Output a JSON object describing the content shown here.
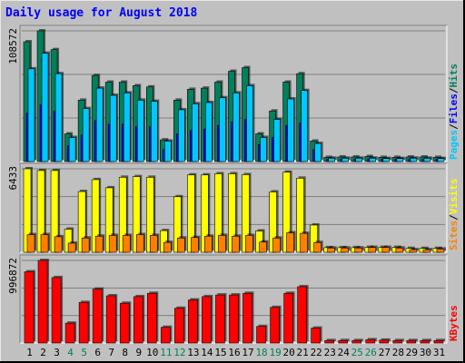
{
  "chart_data": {
    "type": "bar",
    "title": "Daily usage for August 2018",
    "categories": [
      "1",
      "2",
      "3",
      "4",
      "5",
      "6",
      "7",
      "8",
      "9",
      "10",
      "11",
      "12",
      "13",
      "14",
      "15",
      "16",
      "17",
      "18",
      "19",
      "20",
      "21",
      "22",
      "23",
      "24",
      "25",
      "26",
      "27",
      "28",
      "29",
      "30",
      "31"
    ],
    "weekend_days": [
      "4",
      "5",
      "11",
      "12",
      "18",
      "19",
      "25",
      "26"
    ],
    "panels": [
      {
        "id": "hits-files-pages",
        "axis_max_label": "108572",
        "ylim": [
          0,
          108572
        ],
        "legend": [
          {
            "label": "Pages",
            "color": "#00c8ff"
          },
          {
            "label": "/",
            "color": "#000000"
          },
          {
            "label": "Files",
            "color": "#0000ff"
          },
          {
            "label": "/",
            "color": "#000000"
          },
          {
            "label": "Hits",
            "color": "#00805c"
          }
        ],
        "series": [
          {
            "name": "Hits",
            "color": "#00805c",
            "values": [
              99500,
              108572,
              93000,
              23000,
              51000,
              71500,
              66000,
              66000,
              63000,
              62000,
              18000,
              51000,
              60000,
              61000,
              66000,
              75000,
              78000,
              23000,
              42000,
              66000,
              73000,
              17000,
              3500,
              3800,
              3800,
              4200,
              3500,
              3500,
              3800,
              3800,
              3500
            ]
          },
          {
            "name": "Files",
            "color": "#0000ff",
            "values": [
              40000,
              47000,
              42000,
              13000,
              22000,
              34000,
              31000,
              31000,
              29000,
              29000,
              10000,
              23000,
              26000,
              27000,
              30000,
              33000,
              35000,
              14000,
              20000,
              30000,
              32000,
              10000,
              2000,
              2000,
              2000,
              2200,
              2000,
              2000,
              2100,
              2000,
              2000
            ]
          },
          {
            "name": "Pages",
            "color": "#00c8ff",
            "values": [
              77000,
              90000,
              73000,
              20000,
              44000,
              61000,
              55000,
              57000,
              51000,
              50000,
              17000,
              43000,
              48000,
              49000,
              53000,
              57000,
              63000,
              20000,
              35000,
              52000,
              59000,
              15000,
              2800,
              2800,
              2800,
              2800,
              2500,
              2500,
              2800,
              2800,
              2500
            ]
          }
        ]
      },
      {
        "id": "visits-sites",
        "axis_max_label": "6433",
        "ylim": [
          0,
          6433
        ],
        "legend": [
          {
            "label": "Sites",
            "color": "#ff8000"
          },
          {
            "label": "/",
            "color": "#000000"
          },
          {
            "label": "Visits",
            "color": "#ffff00"
          }
        ],
        "series": [
          {
            "name": "Visits",
            "color": "#ffff00",
            "values": [
              6433,
              6300,
              6300,
              1780,
              4680,
              5600,
              4970,
              5780,
              5830,
              5780,
              1670,
              4280,
              5960,
              5960,
              6050,
              6050,
              5980,
              1640,
              4650,
              6170,
              5710,
              2100,
              360,
              360,
              360,
              380,
              380,
              380,
              300,
              300,
              300
            ]
          },
          {
            "name": "Sites",
            "color": "#ff8000",
            "values": [
              1360,
              1360,
              1200,
              700,
              1100,
              1240,
              1300,
              1300,
              1360,
              1300,
              760,
              1100,
              1140,
              1240,
              1300,
              1240,
              1300,
              790,
              1100,
              1500,
              1460,
              750,
              330,
              330,
              330,
              380,
              380,
              330,
              200,
              200,
              250
            ]
          }
        ]
      },
      {
        "id": "kbytes",
        "axis_max_label": "996872",
        "ylim": [
          0,
          996872
        ],
        "legend": [
          {
            "label": "KBytes",
            "color": "#ff0000"
          }
        ],
        "series": [
          {
            "name": "KBytes",
            "color": "#ff0000",
            "values": [
              860000,
              996872,
              790000,
              240000,
              490000,
              650000,
              570000,
              480000,
              560000,
              600000,
              190000,
              420000,
              520000,
              560000,
              580000,
              580000,
              600000,
              200000,
              430000,
              600000,
              680000,
              180000,
              30000,
              30000,
              30000,
              40000,
              35000,
              30000,
              30000,
              30000,
              30000
            ]
          }
        ]
      }
    ],
    "colors": {
      "background": "#c0c0c0",
      "frame": "#ffffff",
      "title": "#0000ff",
      "weekday_label": "#000000",
      "weekend_label": "#00805c"
    }
  }
}
